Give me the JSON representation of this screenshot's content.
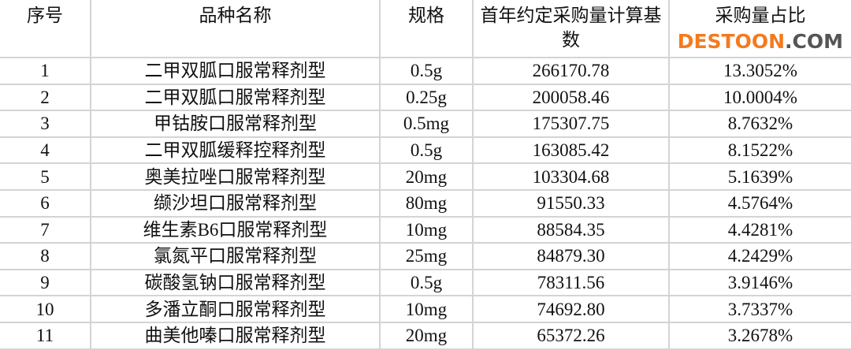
{
  "table": {
    "headers": [
      "序号",
      "品种名称",
      "规格",
      "首年约定采购量计算基数",
      "采购量占比"
    ],
    "rows": [
      [
        "1",
        "二甲双胍口服常释剂型",
        "0.5g",
        "266170.78",
        "13.3052%"
      ],
      [
        "2",
        "二甲双胍口服常释剂型",
        "0.25g",
        "200058.46",
        "10.0004%"
      ],
      [
        "3",
        "甲钴胺口服常释剂型",
        "0.5mg",
        "175307.75",
        "8.7632%"
      ],
      [
        "4",
        "二甲双胍缓释控释剂型",
        "0.5g",
        "163085.42",
        "8.1522%"
      ],
      [
        "5",
        "奥美拉唑口服常释剂型",
        "20mg",
        "103304.68",
        "5.1639%"
      ],
      [
        "6",
        "缬沙坦口服常释剂型",
        "80mg",
        "91550.33",
        "4.5764%"
      ],
      [
        "7",
        "维生素B6口服常释剂型",
        "10mg",
        "88584.35",
        "4.4281%"
      ],
      [
        "8",
        "氯氮平口服常释剂型",
        "25mg",
        "84879.30",
        "4.2429%"
      ],
      [
        "9",
        "碳酸氢钠口服常释剂型",
        "0.5g",
        "78311.56",
        "3.9146%"
      ],
      [
        "10",
        "多潘立酮口服常释剂型",
        "10mg",
        "74692.80",
        "3.7337%"
      ],
      [
        "11",
        "曲美他嗪口服常释剂型",
        "20mg",
        "65372.26",
        "3.2678%"
      ]
    ]
  },
  "watermark": {
    "part1": "DESTOON",
    "part2": ".COM"
  }
}
